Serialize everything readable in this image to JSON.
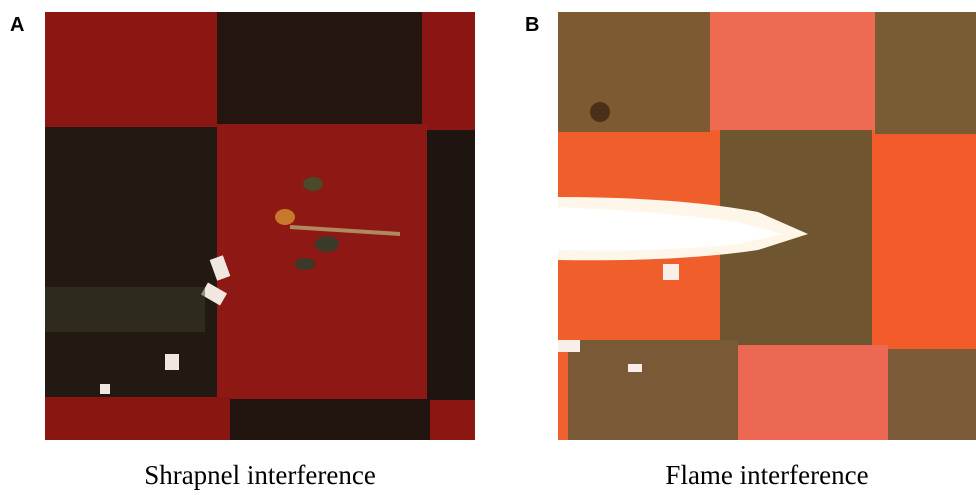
{
  "panels": [
    {
      "label": "A",
      "caption": "Shrapnel interference"
    },
    {
      "label": "B",
      "caption": "Flame interference"
    }
  ]
}
